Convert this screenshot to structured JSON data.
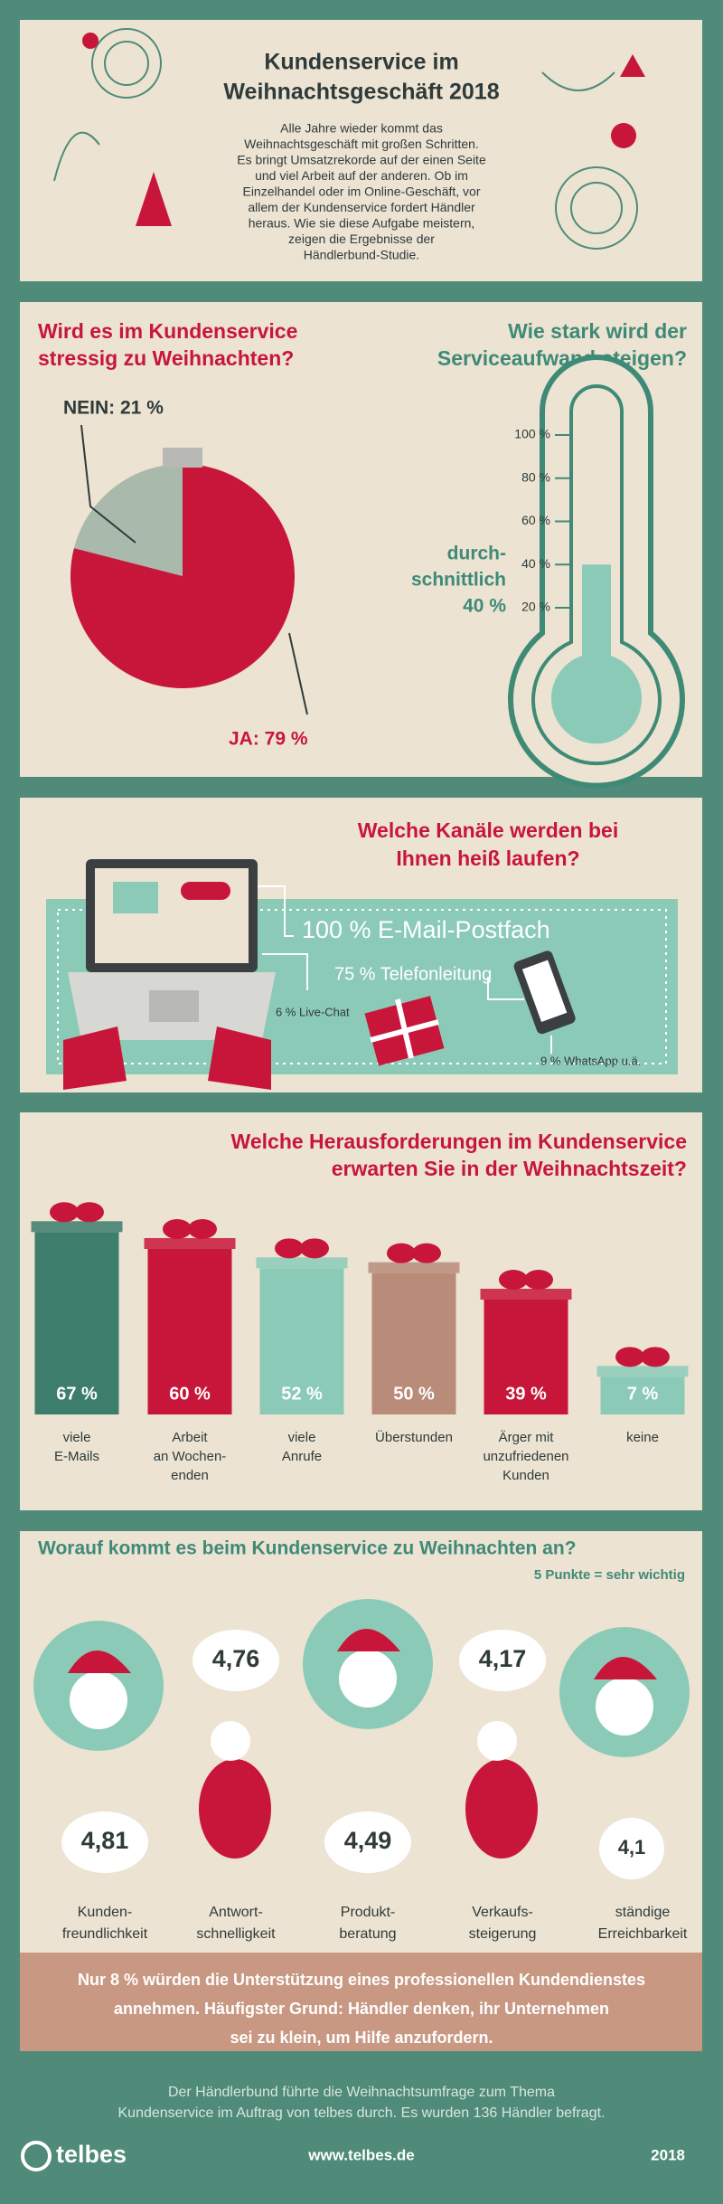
{
  "header": {
    "title": [
      "Kundenservice im",
      "Weihnachtsgeschäft 2018"
    ],
    "intro": [
      "Alle Jahre wieder kommt das",
      "Weihnachtsgeschäft mit großen Schritten.",
      "Es bringt Umsatzrekorde auf der einen Seite",
      "und viel Arbeit auf der anderen. Ob im",
      "Einzelhandel oder im Online-Geschäft, vor",
      "allem der Kundenservice fordert Händler",
      "heraus. Wie sie diese Aufgabe meistern,",
      "zeigen die Ergebnisse der",
      "Händlerbund-Studie."
    ]
  },
  "stress": {
    "title": [
      "Wird es im Kundenservice",
      "stressig zu Weihnachten?"
    ],
    "slices": [
      {
        "label": "NEIN: 21 %",
        "value": 21
      },
      {
        "label": "JA: 79 %",
        "value": 79
      }
    ]
  },
  "effort": {
    "title": [
      "Wie stark wird der",
      "Serviceaufwand steigen?"
    ],
    "ticks": [
      {
        "value": 100,
        "label": "100 %"
      },
      {
        "value": 80,
        "label": "80 %"
      },
      {
        "value": 60,
        "label": "60 %"
      },
      {
        "value": 40,
        "label": "40 %"
      },
      {
        "value": 20,
        "label": "20 %"
      }
    ],
    "value": 40,
    "value_label": [
      "durch-",
      "schnittlich",
      "40 %"
    ]
  },
  "channels": {
    "title": [
      "Welche Kanäle werden bei",
      "Ihnen heiß laufen?"
    ],
    "items": [
      "100 % E-Mail-Postfach",
      "75 % Telefonleitung",
      "6 % Live-Chat",
      "9 % WhatsApp u.ä."
    ]
  },
  "challenges": {
    "title": [
      "Welche Herausforderungen im Kundenservice",
      "erwarten Sie in der Weihnachtszeit?"
    ],
    "items": [
      {
        "value": 67,
        "value_label": "67 %",
        "label": [
          "viele",
          "E-Mails"
        ]
      },
      {
        "value": 60,
        "value_label": "60 %",
        "label": [
          "Arbeit",
          "an Wochen-",
          "enden"
        ]
      },
      {
        "value": 52,
        "value_label": "52 %",
        "label": [
          "viele",
          "Anrufe"
        ]
      },
      {
        "value": 50,
        "value_label": "50 %",
        "label": [
          "Überstunden"
        ]
      },
      {
        "value": 39,
        "value_label": "39 %",
        "label": [
          "Ärger mit",
          "unzufriedenen",
          "Kunden"
        ]
      },
      {
        "value": 7,
        "value_label": "7 %",
        "label": [
          "keine"
        ]
      }
    ]
  },
  "ratings": {
    "title": "Worauf kommt es beim Kundenservice zu Weihnachten an?",
    "note": "5 Punkte = sehr wichtig",
    "items": [
      {
        "value": 4.81,
        "value_label": "4,81",
        "label": [
          "Kunden-",
          "freundlichkeit"
        ]
      },
      {
        "value": 4.76,
        "value_label": "4,76",
        "label": [
          "Antwort-",
          "schnelligkeit"
        ]
      },
      {
        "value": 4.49,
        "value_label": "4,49",
        "label": [
          "Produkt-",
          "beratung"
        ]
      },
      {
        "value": 4.17,
        "value_label": "4,17",
        "label": [
          "Verkaufs-",
          "steigerung"
        ]
      },
      {
        "value": 4.1,
        "value_label": "4,1",
        "label": [
          "ständige",
          "Erreichbarkeit"
        ]
      }
    ],
    "summary": [
      "Nur 8 % würden die Unterstützung eines professionellen Kundendienstes",
      "annehmen. Häufigster Grund: Händler denken, ihr Unternehmen",
      "sei zu klein, um Hilfe anzufordern."
    ]
  },
  "footer": {
    "text": [
      "Der Händlerbund führte die Weihnachtsumfrage zum Thema",
      "Kundenservice im Auftrag von telbes durch. Es wurden 136 Händler befragt."
    ],
    "brand": "telbes",
    "url": "www.telbes.de",
    "year": "2018"
  }
}
